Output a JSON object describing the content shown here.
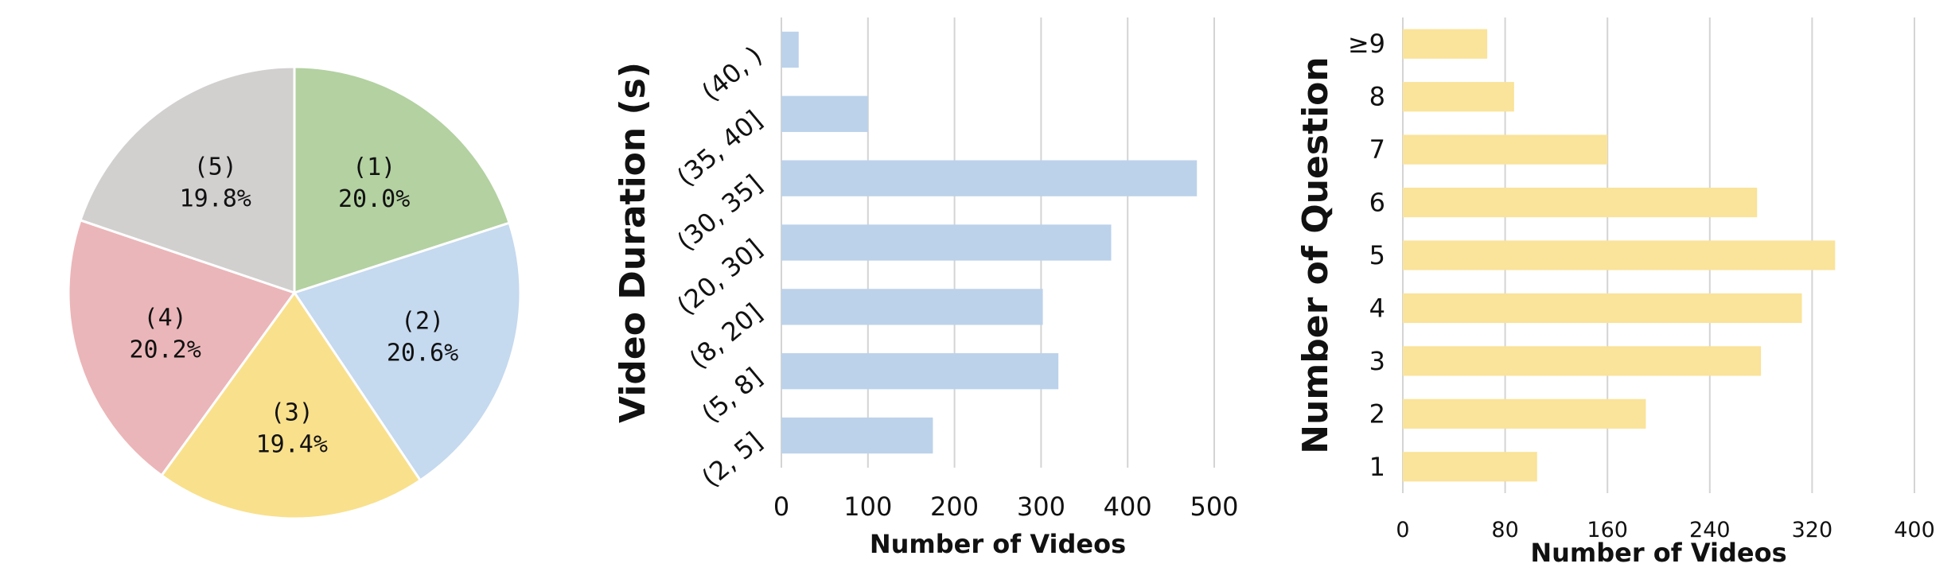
{
  "chart_data": [
    {
      "type": "pie",
      "labels": [
        "(1)",
        "(2)",
        "(3)",
        "(4)",
        "(5)"
      ],
      "values": [
        20.0,
        20.6,
        19.4,
        20.2,
        19.8
      ],
      "value_labels": [
        "20.0%",
        "20.6%",
        "19.4%",
        "20.2%",
        "19.8%"
      ],
      "colors": [
        "#b3d1a1",
        "#c5d9ef",
        "#f9e08c",
        "#ebb6b9",
        "#d2cfcf"
      ],
      "start": "12 o'clock",
      "direction": "clockwise"
    },
    {
      "type": "bar",
      "orientation": "horizontal",
      "categories": [
        "(2, 5]",
        "(5, 8]",
        "(8, 20]",
        "(20, 30]",
        "(30, 35]",
        "(35, 40]",
        "(40, )"
      ],
      "values": [
        175,
        320,
        302,
        381,
        480,
        100,
        20
      ],
      "xlabel": "Number of Videos",
      "ylabel": "Video Duration (s)",
      "xlim": [
        0,
        500
      ],
      "xticks": [
        "0",
        "100",
        "200",
        "300",
        "400",
        "500"
      ],
      "grid": "vertical",
      "color": "#bcd2ea"
    },
    {
      "type": "bar",
      "orientation": "horizontal",
      "categories": [
        "1",
        "2",
        "3",
        "4",
        "5",
        "6",
        "7",
        "8",
        "≥9"
      ],
      "values": [
        105,
        190,
        280,
        312,
        338,
        277,
        160,
        87,
        66
      ],
      "xlabel": "Number of Videos",
      "ylabel": "Number of Question",
      "xlim": [
        0,
        400
      ],
      "xticks": [
        "0",
        "80",
        "160",
        "240",
        "320",
        "400"
      ],
      "grid": "vertical",
      "color": "#fae39a"
    }
  ]
}
